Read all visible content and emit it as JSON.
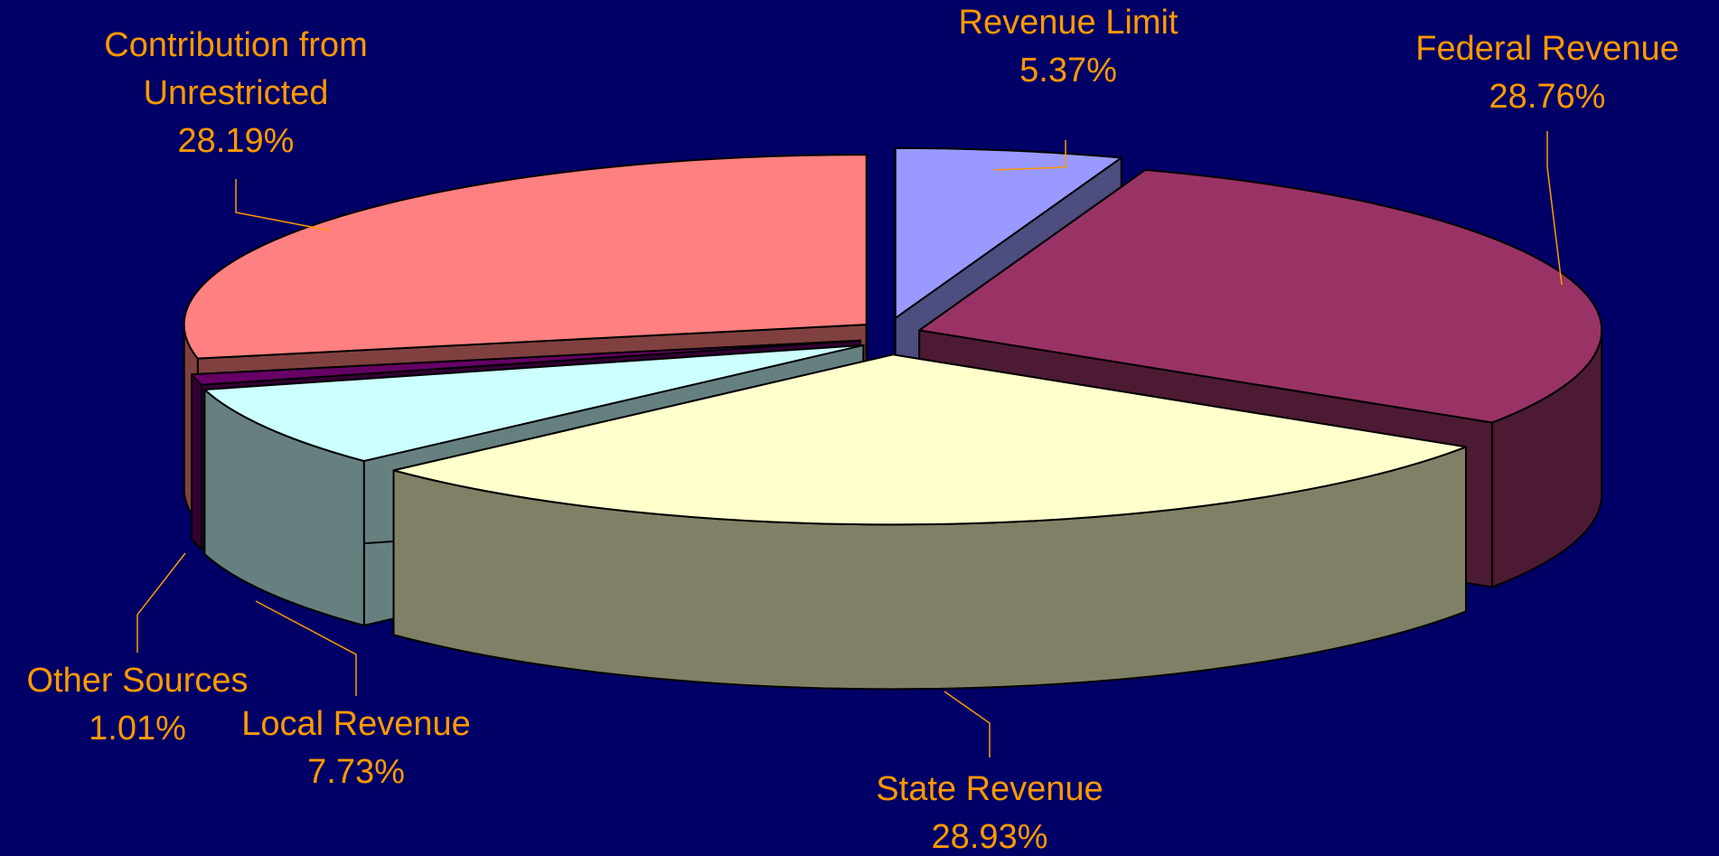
{
  "chart_data": {
    "type": "pie3d",
    "categories": [
      "Revenue Limit",
      "Federal Revenue",
      "State Revenue",
      "Local Revenue",
      "Other Sources",
      "Contribution from Unrestricted"
    ],
    "values": [
      5.37,
      28.76,
      28.93,
      7.73,
      1.01,
      28.19
    ],
    "value_labels": [
      "5.37%",
      "28.76%",
      "28.93%",
      "7.73%",
      "1.01%",
      "28.19%"
    ],
    "colors": [
      "#9999ff",
      "#993366",
      "#ffffcc",
      "#ccffff",
      "#660066",
      "#ff8080"
    ]
  }
}
